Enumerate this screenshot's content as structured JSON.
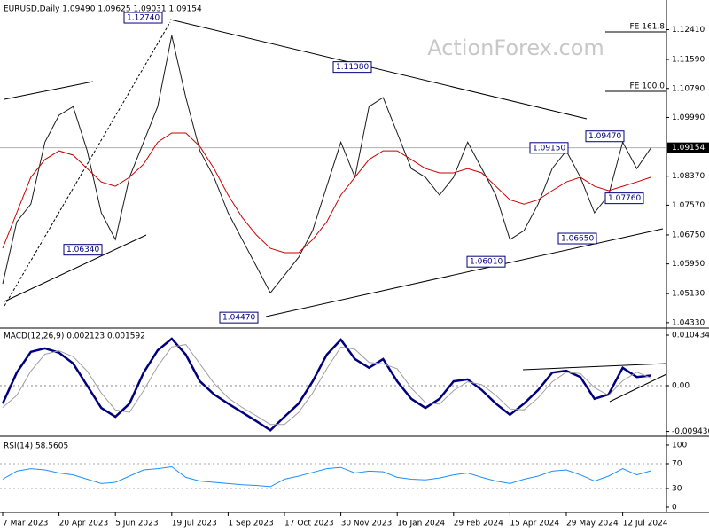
{
  "watermark": "ActionForex.com",
  "chart_data": [
    {
      "type": "line",
      "title": "EURUSD,Daily  1.09490 1.09625 1.09031 1.09154",
      "categories": [
        "7 Mar 2023",
        null,
        null,
        null,
        "20 Apr 2023",
        null,
        null,
        null,
        "5 Jun 2023",
        null,
        null,
        null,
        "19 Jul 2023",
        null,
        null,
        null,
        "1 Sep 2023",
        null,
        null,
        null,
        "17 Oct 2023",
        null,
        null,
        null,
        "30 Nov 2023",
        null,
        null,
        null,
        "16 Jan 2024",
        null,
        null,
        null,
        "29 Feb 2024",
        null,
        null,
        null,
        "15 Apr 2024",
        null,
        null,
        null,
        "29 May 2024",
        null,
        null,
        null,
        "12 Jul 2024",
        null,
        null
      ],
      "series": [
        {
          "color": "#1a1a1a",
          "values": [
            1.054,
            1.0711,
            1.076,
            1.0931,
            1.1005,
            1.1029,
            1.0907,
            1.0736,
            1.0662,
            1.0834,
            1.0931,
            1.1029,
            1.1225,
            1.1054,
            1.0907,
            1.0834,
            1.0736,
            1.0662,
            1.0589,
            1.0515,
            1.0564,
            1.0613,
            1.0687,
            1.0809,
            1.0931,
            1.0834,
            1.1029,
            1.1054,
            1.0956,
            1.0858,
            1.0834,
            1.0785,
            1.0834,
            1.0931,
            1.0858,
            1.0785,
            1.0662,
            1.0687,
            1.076,
            1.0858,
            1.0907,
            1.0834,
            1.0736,
            1.0785,
            1.0931,
            1.0858,
            1.0915
          ]
        },
        {
          "color": "#cc0000",
          "values": [
            1.0638,
            1.0736,
            1.0834,
            1.0883,
            1.0907,
            1.0895,
            1.0858,
            1.0821,
            1.0809,
            1.0834,
            1.087,
            1.0931,
            1.0956,
            1.0956,
            1.0919,
            1.0858,
            1.0785,
            1.0723,
            1.0675,
            1.0638,
            1.0626,
            1.0626,
            1.0662,
            1.0711,
            1.0785,
            1.0834,
            1.0883,
            1.0907,
            1.0907,
            1.0883,
            1.0858,
            1.0846,
            1.0846,
            1.0858,
            1.0846,
            1.0809,
            1.0772,
            1.076,
            1.0772,
            1.0797,
            1.0821,
            1.0834,
            1.0809,
            1.0797,
            1.0809,
            1.0821,
            1.0834
          ]
        }
      ],
      "ylim": [
        1.0418,
        1.1323
      ],
      "yticks": [
        {
          "value": 1.1241,
          "label": "1.12410"
        },
        {
          "value": 1.1159,
          "label": "1.11590"
        },
        {
          "value": 1.1079,
          "label": "1.10790"
        },
        {
          "value": 1.0999,
          "label": "1.09990"
        },
        {
          "value": 1.0837,
          "label": "1.08370"
        },
        {
          "value": 1.0757,
          "label": "1.07570"
        },
        {
          "value": 1.0675,
          "label": "1.06750"
        },
        {
          "value": 1.0595,
          "label": "1.05950"
        },
        {
          "value": 1.0513,
          "label": "1.05130"
        },
        {
          "value": 1.0433,
          "label": "1.04330"
        }
      ],
      "last_price": {
        "value": 1.09154,
        "label": "1.09154"
      },
      "fe_levels": [
        {
          "value": 1.1235,
          "label": "FE 161.8"
        },
        {
          "value": 1.1071,
          "label": "FE 100.0"
        }
      ],
      "annotations": [
        {
          "value": 1.1274,
          "label": "1.12740"
        },
        {
          "value": 1.1138,
          "label": "1.11380"
        },
        {
          "value": 1.0915,
          "label": "1.09150"
        },
        {
          "value": 1.0947,
          "label": "1.09470"
        },
        {
          "value": 1.0776,
          "label": "1.07760"
        },
        {
          "value": 1.0665,
          "label": "1.06650"
        },
        {
          "value": 1.0601,
          "label": "1.06010"
        },
        {
          "value": 1.0447,
          "label": "1.04470"
        },
        {
          "value": 1.0634,
          "label": "1.06340"
        }
      ]
    },
    {
      "type": "line",
      "title": "MACD(12,26,9) 0.002123 0.001592",
      "series": [
        {
          "color": "#00007f",
          "values": [
            -0.0037,
            0.0027,
            0.007,
            0.0077,
            0.0068,
            0.0046,
            0,
            -0.0046,
            -0.0064,
            -0.0037,
            0.0027,
            0.0073,
            0.0097,
            0.0064,
            0.0009,
            -0.0018,
            -0.0037,
            -0.0055,
            -0.0073,
            -0.0092,
            -0.0064,
            -0.0037,
            0.0009,
            0.0064,
            0.0095,
            0.0055,
            0.0037,
            0.0055,
            0.0009,
            -0.0027,
            -0.0046,
            -0.0027,
            0.0009,
            0.0013,
            -0.0009,
            -0.0037,
            -0.006,
            -0.0037,
            -0.0009,
            0.0027,
            0.0031,
            0.0018,
            -0.0027,
            -0.0018,
            0.0037,
            0.0018,
            0.0021
          ]
        },
        {
          "color": "#a0a0a0",
          "values": [
            -0.0045,
            -0.002,
            0.003,
            0.0065,
            0.0072,
            0.006,
            0.003,
            -0.0015,
            -0.005,
            -0.0055,
            -0.001,
            0.004,
            0.008,
            0.0085,
            0.0045,
            0.0005,
            -0.0025,
            -0.0045,
            -0.0062,
            -0.008,
            -0.008,
            -0.0055,
            -0.0015,
            0.0035,
            0.008,
            0.0075,
            0.0048,
            0.0045,
            0.0035,
            -0.0005,
            -0.0035,
            -0.0038,
            -0.001,
            0.0008,
            0.0002,
            -0.002,
            -0.0048,
            -0.005,
            -0.0025,
            0.0008,
            0.0028,
            0.0025,
            -0.0004,
            -0.002,
            0.001,
            0.0028,
            0.0016
          ]
        }
      ],
      "ylim": [
        -0.01043,
        0.01153
      ],
      "yticks": [
        0.010434,
        {
          "value": 0,
          "label": "0.00"
        },
        -0.009436
      ]
    },
    {
      "type": "line",
      "title": "RSI(14) 58.5605",
      "series": [
        {
          "color": "#1e90ff",
          "values": [
            45,
            58,
            62,
            60,
            55,
            52,
            45,
            38,
            40,
            50,
            60,
            62,
            65,
            48,
            42,
            40,
            38,
            36,
            35,
            33,
            45,
            50,
            56,
            62,
            64,
            55,
            58,
            57,
            48,
            45,
            44,
            47,
            52,
            55,
            48,
            42,
            38,
            45,
            50,
            58,
            60,
            52,
            42,
            50,
            62,
            52,
            58.5605
          ]
        }
      ],
      "ylim": [
        -8.6,
        111.4
      ],
      "yticks": [
        100,
        70,
        30,
        0
      ]
    }
  ]
}
